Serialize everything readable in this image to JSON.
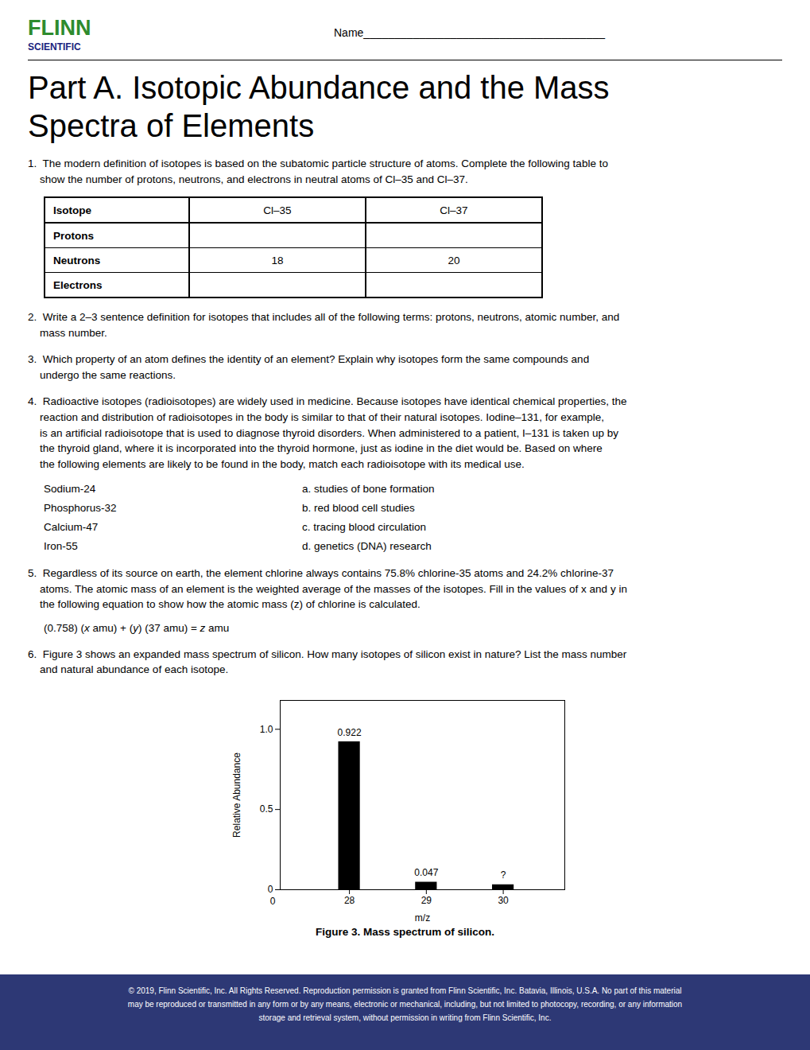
{
  "chart_data": {
    "type": "bar",
    "x": [
      28,
      29,
      30
    ],
    "values": [
      0.922,
      0.047,
      0.031
    ],
    "value_labels": [
      "0.922",
      "0.047",
      "?"
    ],
    "data_labels": true,
    "color": "#000000",
    "xlim": [
      27.1,
      30.8
    ],
    "xticks": [
      28,
      29,
      30
    ],
    "ylim": [
      0,
      1.18
    ],
    "yticks": [
      0,
      0.5,
      {
        "value": 1.0,
        "label": "1.0"
      }
    ],
    "x_label": "m/z",
    "y_label": "Relative Abundance",
    "grid": false,
    "annotations": [
      "0"
    ],
    "caption": "Figure 3.  Mass spectrum of silicon."
  },
  "page": {
    "brand": [
      "FLINN",
      "SCIENTIFIC"
    ],
    "brand_colors": [
      "#2e8b2e",
      "#1a237e"
    ],
    "name_line": "Name_______________________________________",
    "title": "Part A. Isotopic Abundance and the Mass\nSpectra of Elements",
    "questions": [
      "1.  The modern definition of isotopes is based on the subatomic particle structure of atoms. Complete the following table to\n    show the number of protons, neutrons, and electrons in neutral atoms of Cl–35 and Cl–37.",
      "2.  Write a 2–3 sentence definition for isotopes that includes all of the following terms: protons, neutrons, atomic number, and\n    mass number.",
      "3.  Which property of an atom defines the identity of an element? Explain why isotopes form the same compounds and\n    undergo the same reactions.",
      "4.  Radioactive isotopes (radioisotopes) are widely used in medicine. Because isotopes have identical chemical properties, the\n    reaction and distribution of radioisotopes in the body is similar to that of their natural isotopes. Iodine–131, for example,\n    is an artificial radioisotope that is used to diagnose thyroid disorders. When administered to a patient, I–131 is taken up by\n    the thyroid gland, where it is incorporated into the thyroid hormone, just as iodine in the diet would be. Based on where\n    the following elements are likely to be found in the body, match each radioisotope with its medical use.",
      "5.  Regardless of its source on earth, the element chlorine always contains 75.8% chlorine-35 atoms and 24.2% chlorine-37\n    atoms. The atomic mass of an element is the weighted average of the masses of the isotopes. Fill in the values of x and y in\n    the following equation to show how the atomic mass (z) of chlorine is calculated.",
      "6.  Figure 3 shows an expanded mass spectrum of silicon. How many isotopes of silicon exist in nature? List the mass number\n    and natural abundance of each isotope."
    ],
    "table": {
      "rows": [
        "Isotope",
        "Protons",
        "Neutrons",
        "Electrons"
      ],
      "col1": [
        "Cl–35",
        null,
        "18",
        null
      ],
      "col2": [
        "Cl–37",
        null,
        "20",
        null
      ]
    },
    "matching": [
      [
        "Sodium-24",
        "a. studies of bone formation"
      ],
      [
        "Phosphorus-32",
        "b. red blood cell studies"
      ],
      [
        "Calcium-47",
        "c. tracing blood circulation"
      ],
      [
        "Iron-55",
        "d. genetics (DNA) research"
      ]
    ],
    "equation": [
      "(0.758) (",
      "x",
      " amu) + (",
      "y",
      ") (37 amu) = ",
      "z",
      " amu"
    ],
    "footer_text": "© 2019, Flinn Scientific, Inc. All Rights Reserved. Reproduction permission is granted from Flinn Scientific, Inc. Batavia, Illinois, U.S.A. No part of this material\nmay be reproduced or transmitted in any form or by any means, electronic or mechanical, including, but not limited to photocopy, recording, or any information\nstorage and retrieval system, without permission in writing from Flinn Scientific, Inc.",
    "footer_color": "#2d3875"
  }
}
